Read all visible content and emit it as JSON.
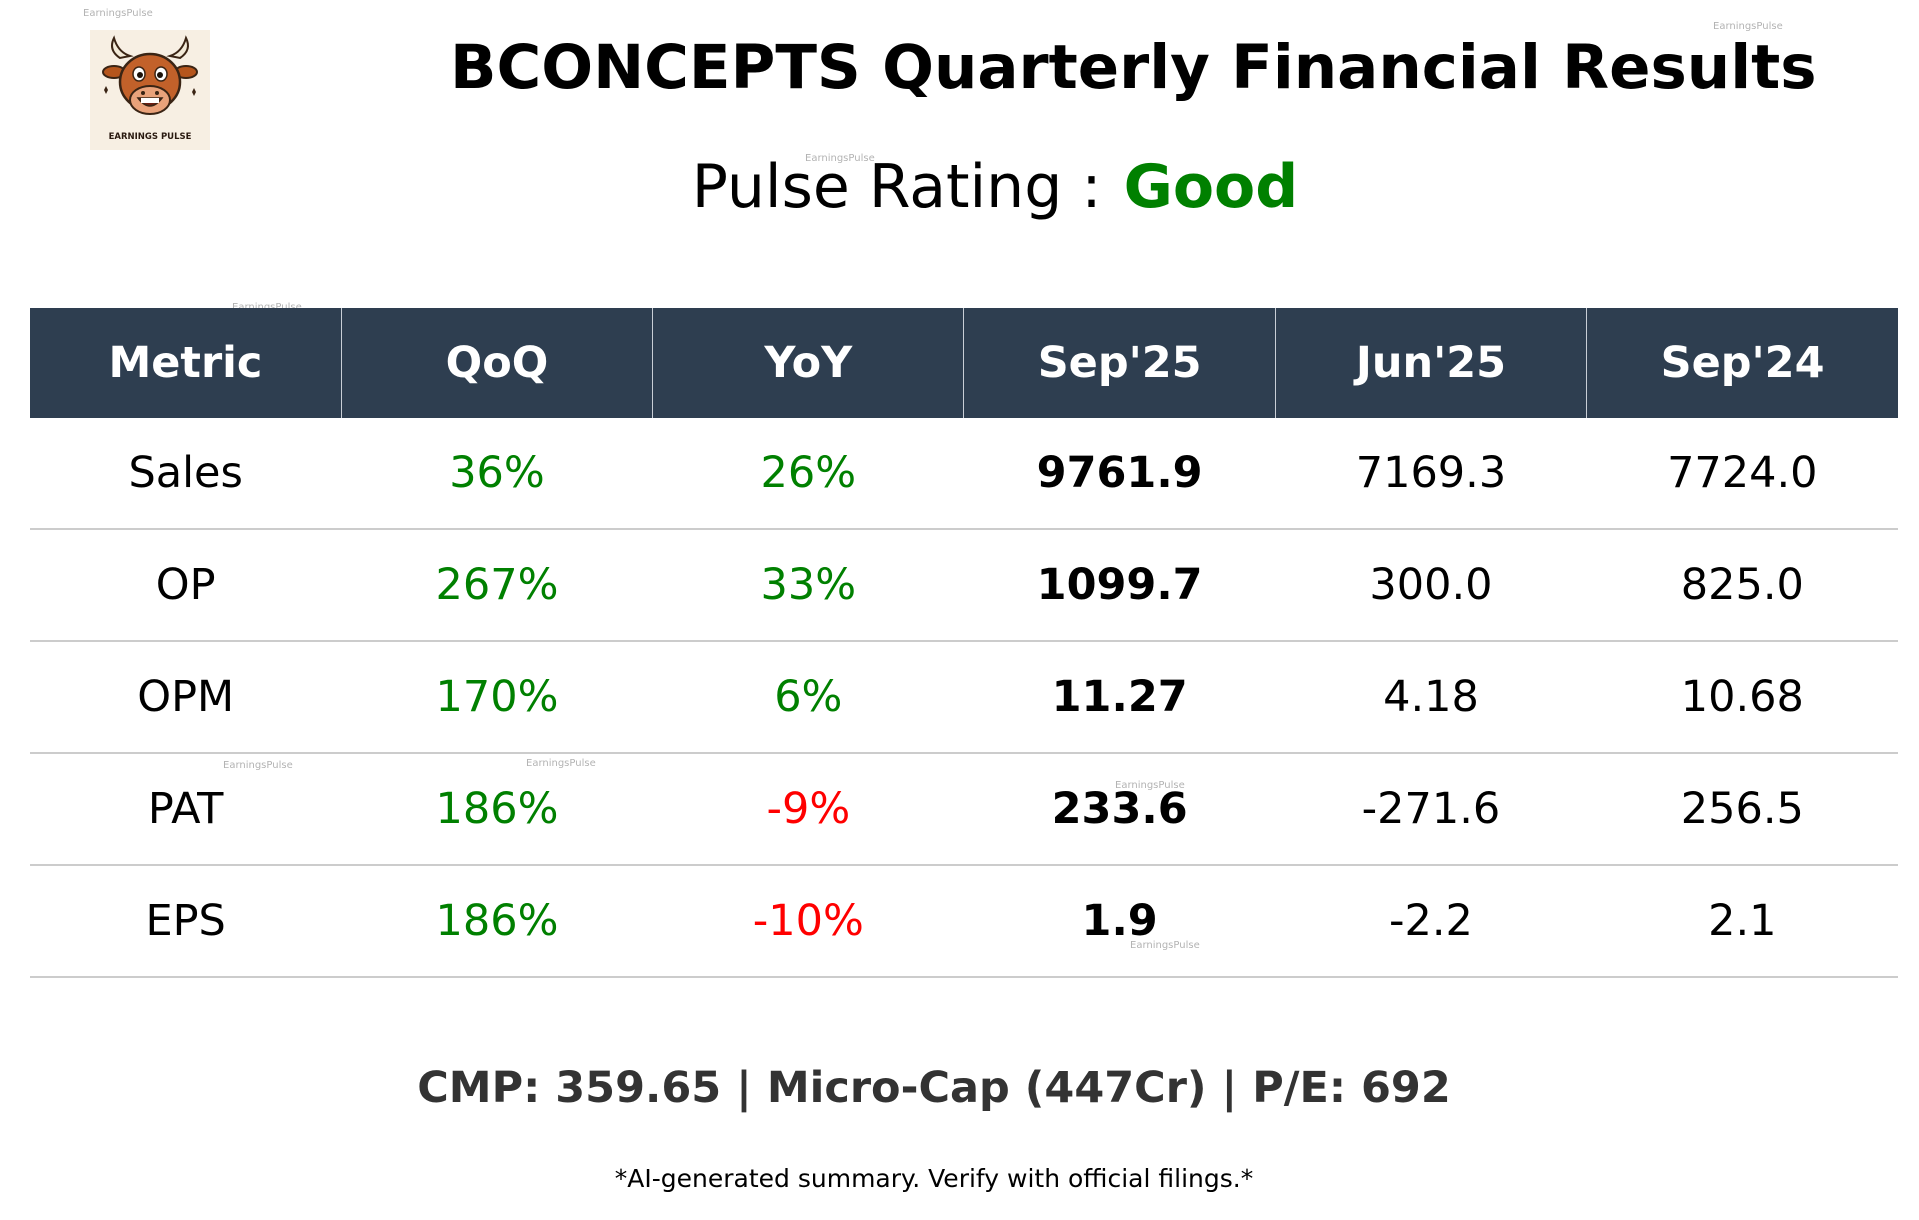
{
  "watermark": "EarningsPulse",
  "logo": {
    "text": "EARNINGS PULSE",
    "icon": "bull-mascot-icon"
  },
  "title": "BCONCEPTS Quarterly Financial Results",
  "rating": {
    "label": "Pulse Rating :",
    "value": "Good"
  },
  "colors": {
    "positive": "#008000",
    "negative": "#ff0000",
    "header_bg": "#2e3e50",
    "footer_text": "#333333"
  },
  "table": {
    "headers": [
      "Metric",
      "QoQ",
      "YoY",
      "Sep'25",
      "Jun'25",
      "Sep'24"
    ],
    "rows": [
      {
        "metric": "Sales",
        "qoq": "36%",
        "qoq_sign": "positive",
        "yoy": "26%",
        "yoy_sign": "positive",
        "sep25": "9761.9",
        "jun25": "7169.3",
        "sep24": "7724.0"
      },
      {
        "metric": "OP",
        "qoq": "267%",
        "qoq_sign": "positive",
        "yoy": "33%",
        "yoy_sign": "positive",
        "sep25": "1099.7",
        "jun25": "300.0",
        "sep24": "825.0"
      },
      {
        "metric": "OPM",
        "qoq": "170%",
        "qoq_sign": "positive",
        "yoy": "6%",
        "yoy_sign": "positive",
        "sep25": "11.27",
        "jun25": "4.18",
        "sep24": "10.68"
      },
      {
        "metric": "PAT",
        "qoq": "186%",
        "qoq_sign": "positive",
        "yoy": "-9%",
        "yoy_sign": "negative",
        "sep25": "233.6",
        "jun25": "-271.6",
        "sep24": "256.5"
      },
      {
        "metric": "EPS",
        "qoq": "186%",
        "qoq_sign": "positive",
        "yoy": "-10%",
        "yoy_sign": "negative",
        "sep25": "1.9",
        "jun25": "-2.2",
        "sep24": "2.1"
      }
    ]
  },
  "footer": "CMP: 359.65 | Micro-Cap (447Cr) | P/E: 692",
  "disclaimer": "*AI-generated summary. Verify with official filings.*"
}
